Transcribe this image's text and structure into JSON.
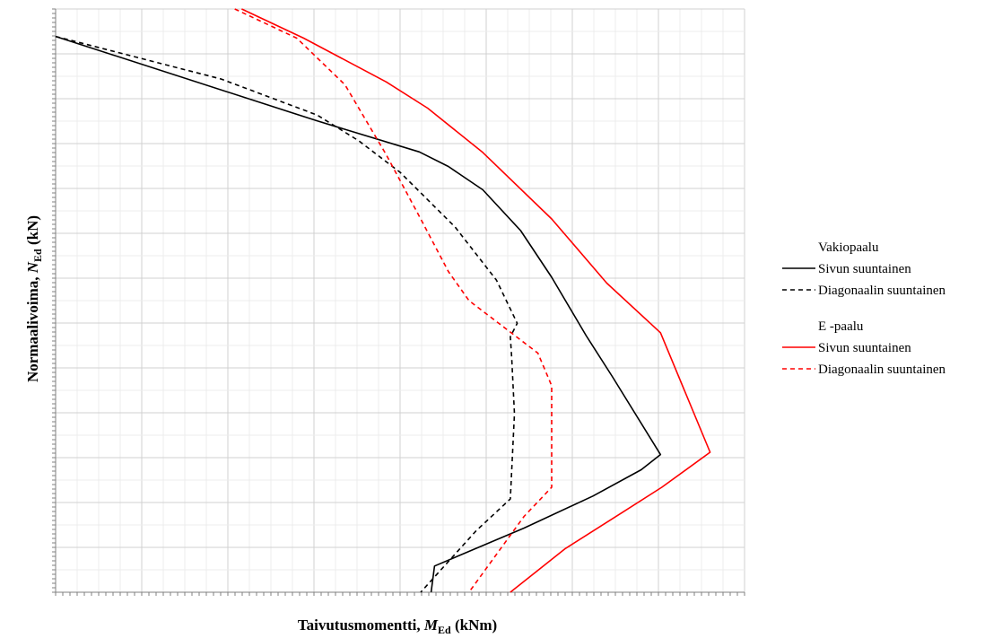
{
  "chart_data": {
    "type": "line",
    "xlabel": {
      "main": "Taivutusmomentti, ",
      "sym": "M",
      "sub": "Ed",
      "unit": " (kNm)"
    },
    "ylabel": {
      "main": "Normaalivoima, ",
      "sym": "N",
      "sub": "Ed",
      "unit": "  (kN)"
    },
    "xlim": [
      0,
      1
    ],
    "ylim": [
      0,
      1
    ],
    "grid": true,
    "legend_position": "right",
    "legend": [
      {
        "group": "Vakiopaalu",
        "entries": [
          "Sivun suuntainen",
          "Diagonaalin suuntainen"
        ]
      },
      {
        "group": "E -paalu",
        "entries": [
          "Sivun suuntainen",
          "Diagonaalin suuntainen"
        ]
      }
    ],
    "series": [
      {
        "color": "#000000",
        "dash": "solid",
        "points": [
          [
            0.0,
            0.953
          ],
          [
            0.38,
            0.808
          ],
          [
            0.528,
            0.755
          ],
          [
            0.57,
            0.73
          ],
          [
            0.62,
            0.69
          ],
          [
            0.675,
            0.62
          ],
          [
            0.72,
            0.54
          ],
          [
            0.77,
            0.44
          ],
          [
            0.808,
            0.37
          ],
          [
            0.878,
            0.236
          ],
          [
            0.85,
            0.21
          ],
          [
            0.78,
            0.165
          ],
          [
            0.68,
            0.11
          ],
          [
            0.55,
            0.045
          ],
          [
            0.545,
            0.0
          ]
        ]
      },
      {
        "color": "#000000",
        "dash": "dashed",
        "points": [
          [
            0.0,
            0.953
          ],
          [
            0.24,
            0.88
          ],
          [
            0.38,
            0.818
          ],
          [
            0.44,
            0.774
          ],
          [
            0.5,
            0.72
          ],
          [
            0.58,
            0.626
          ],
          [
            0.64,
            0.535
          ],
          [
            0.67,
            0.461
          ],
          [
            0.66,
            0.438
          ],
          [
            0.662,
            0.403
          ],
          [
            0.666,
            0.306
          ],
          [
            0.66,
            0.16
          ],
          [
            0.61,
            0.105
          ],
          [
            0.53,
            0.0
          ]
        ]
      },
      {
        "color": "#ff0000",
        "dash": "solid",
        "points": [
          [
            0.27,
            1.0
          ],
          [
            0.36,
            0.95
          ],
          [
            0.48,
            0.875
          ],
          [
            0.54,
            0.83
          ],
          [
            0.62,
            0.754
          ],
          [
            0.72,
            0.64
          ],
          [
            0.8,
            0.53
          ],
          [
            0.878,
            0.445
          ],
          [
            0.95,
            0.24
          ],
          [
            0.88,
            0.18
          ],
          [
            0.82,
            0.135
          ],
          [
            0.74,
            0.075
          ],
          [
            0.66,
            0.0
          ]
        ]
      },
      {
        "color": "#ff0000",
        "dash": "dashed",
        "points": [
          [
            0.26,
            1.0
          ],
          [
            0.35,
            0.95
          ],
          [
            0.42,
            0.87
          ],
          [
            0.48,
            0.75
          ],
          [
            0.53,
            0.64
          ],
          [
            0.57,
            0.55
          ],
          [
            0.6,
            0.5
          ],
          [
            0.7,
            0.41
          ],
          [
            0.72,
            0.354
          ],
          [
            0.72,
            0.18
          ],
          [
            0.68,
            0.13
          ],
          [
            0.6,
            0.0
          ]
        ]
      }
    ]
  }
}
